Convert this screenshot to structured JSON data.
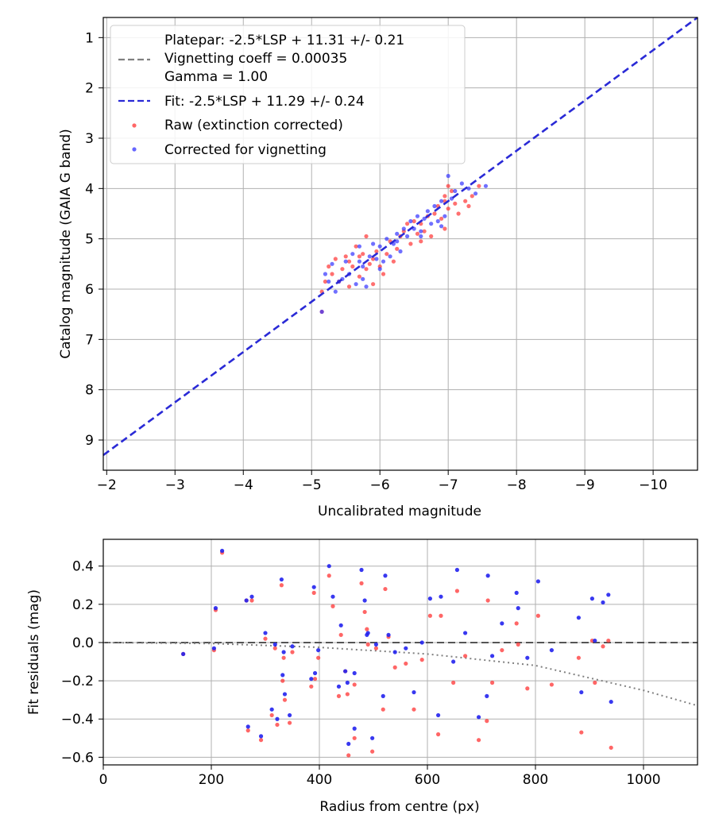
{
  "chart_data": [
    {
      "type": "scatter",
      "name": "magnitude-calibration",
      "xlabel": "Uncalibrated magnitude",
      "ylabel": "Catalog magnitude (GAIA G band)",
      "xlim": [
        -1.95,
        -10.65
      ],
      "ylim": [
        9.6,
        0.6
      ],
      "grid": true,
      "legend_position": "top-left",
      "xticks": [
        -2,
        -3,
        -4,
        -5,
        -6,
        -7,
        -8,
        -9,
        -10
      ],
      "xtick_labels": [
        "−2",
        "−3",
        "−4",
        "−5",
        "−6",
        "−7",
        "−8",
        "−9",
        "−10"
      ],
      "yticks": [
        1,
        2,
        3,
        4,
        5,
        6,
        7,
        8,
        9
      ],
      "ytick_labels": [
        "1",
        "2",
        "3",
        "4",
        "5",
        "6",
        "7",
        "8",
        "9"
      ],
      "legend": [
        {
          "label": "Platepar: -2.5*LSP + 11.31 +/- 0.21",
          "kind": "text"
        },
        {
          "label": "Vignetting coeff = 0.00035",
          "kind": "dashed-line",
          "color": "#808080"
        },
        {
          "label": "Gamma = 1.00",
          "kind": "text"
        },
        {
          "label": "Fit: -2.5*LSP + 11.29 +/- 0.24",
          "kind": "dashed-line",
          "color": "#2a2ad6"
        },
        {
          "label": "Raw (extinction corrected)",
          "kind": "marker",
          "color": "#ff3333"
        },
        {
          "label": "Corrected for vignetting",
          "kind": "marker",
          "color": "#3333ff"
        }
      ],
      "fit_line": {
        "x": [
          -1.95,
          -10.65
        ],
        "y": [
          9.3,
          0.6
        ],
        "color": "#2a2ad6"
      },
      "series": [
        {
          "name": "Raw (extinction corrected)",
          "color": "#ff3333",
          "points": [
            [
              -5.15,
              6.45
            ],
            [
              -5.15,
              6.05
            ],
            [
              -5.2,
              5.85
            ],
            [
              -5.25,
              5.55
            ],
            [
              -5.3,
              5.7
            ],
            [
              -5.35,
              5.4
            ],
            [
              -5.4,
              5.85
            ],
            [
              -5.5,
              5.35
            ],
            [
              -5.55,
              5.45
            ],
            [
              -5.55,
              5.95
            ],
            [
              -5.6,
              5.55
            ],
            [
              -5.65,
              5.15
            ],
            [
              -5.7,
              5.35
            ],
            [
              -5.7,
              5.75
            ],
            [
              -5.75,
              5.3
            ],
            [
              -5.8,
              5.6
            ],
            [
              -5.8,
              4.95
            ],
            [
              -5.85,
              5.5
            ],
            [
              -5.9,
              5.4
            ],
            [
              -5.95,
              5.25
            ],
            [
              -6.0,
              5.55
            ],
            [
              -6.05,
              5.7
            ],
            [
              -6.1,
              5.3
            ],
            [
              -6.15,
              5.05
            ],
            [
              -6.2,
              5.45
            ],
            [
              -6.25,
              5.2
            ],
            [
              -6.3,
              4.95
            ],
            [
              -6.35,
              4.85
            ],
            [
              -6.4,
              4.7
            ],
            [
              -6.45,
              5.1
            ],
            [
              -6.5,
              4.65
            ],
            [
              -6.55,
              4.9
            ],
            [
              -6.6,
              4.7
            ],
            [
              -6.65,
              4.85
            ],
            [
              -6.7,
              4.55
            ],
            [
              -6.75,
              4.95
            ],
            [
              -6.8,
              4.5
            ],
            [
              -6.85,
              4.35
            ],
            [
              -6.9,
              4.6
            ],
            [
              -6.95,
              4.25
            ],
            [
              -6.95,
              4.15
            ],
            [
              -7.0,
              3.95
            ],
            [
              -7.0,
              4.4
            ],
            [
              -7.05,
              4.05
            ],
            [
              -7.1,
              4.3
            ],
            [
              -7.15,
              4.5
            ],
            [
              -7.25,
              4.25
            ],
            [
              -7.3,
              4.35
            ],
            [
              -7.35,
              4.15
            ],
            [
              -7.45,
              3.95
            ],
            [
              -5.9,
              5.9
            ],
            [
              -6.6,
              5.05
            ],
            [
              -6.95,
              4.8
            ],
            [
              -5.45,
              5.6
            ]
          ]
        },
        {
          "name": "Corrected for vignetting",
          "color": "#3333ff",
          "points": [
            [
              -5.15,
              6.45
            ],
            [
              -5.2,
              5.7
            ],
            [
              -5.25,
              5.85
            ],
            [
              -5.3,
              5.5
            ],
            [
              -5.35,
              6.05
            ],
            [
              -5.45,
              5.8
            ],
            [
              -5.5,
              5.45
            ],
            [
              -5.55,
              5.7
            ],
            [
              -5.6,
              5.3
            ],
            [
              -5.65,
              5.9
            ],
            [
              -5.7,
              5.15
            ],
            [
              -5.7,
              5.45
            ],
            [
              -5.75,
              5.55
            ],
            [
              -5.8,
              5.95
            ],
            [
              -5.85,
              5.35
            ],
            [
              -5.9,
              5.1
            ],
            [
              -5.95,
              5.4
            ],
            [
              -6.0,
              5.15
            ],
            [
              -6.05,
              5.45
            ],
            [
              -6.1,
              5.0
            ],
            [
              -6.15,
              5.35
            ],
            [
              -6.2,
              5.1
            ],
            [
              -6.25,
              4.9
            ],
            [
              -6.3,
              5.25
            ],
            [
              -6.35,
              4.8
            ],
            [
              -6.4,
              4.95
            ],
            [
              -6.45,
              4.65
            ],
            [
              -6.5,
              4.8
            ],
            [
              -6.55,
              4.55
            ],
            [
              -6.6,
              4.95
            ],
            [
              -6.65,
              4.6
            ],
            [
              -6.7,
              4.45
            ],
            [
              -6.75,
              4.7
            ],
            [
              -6.8,
              4.35
            ],
            [
              -6.85,
              4.65
            ],
            [
              -6.9,
              4.25
            ],
            [
              -6.95,
              4.55
            ],
            [
              -7.0,
              3.75
            ],
            [
              -7.05,
              4.2
            ],
            [
              -7.1,
              4.05
            ],
            [
              -7.2,
              3.9
            ],
            [
              -7.3,
              4.0
            ],
            [
              -7.4,
              4.1
            ],
            [
              -7.55,
              3.95
            ],
            [
              -5.75,
              5.8
            ],
            [
              -6.25,
              5.05
            ],
            [
              -6.9,
              4.75
            ],
            [
              -5.4,
              5.85
            ],
            [
              -6.0,
              5.6
            ],
            [
              -6.6,
              4.85
            ]
          ]
        }
      ]
    },
    {
      "type": "scatter",
      "name": "fit-residuals",
      "xlabel": "Radius from centre (px)",
      "ylabel": "Fit residuals (mag)",
      "xlim": [
        0,
        1100
      ],
      "ylim": [
        -0.64,
        0.54
      ],
      "grid": true,
      "xticks": [
        0,
        200,
        400,
        600,
        800,
        1000
      ],
      "xtick_labels": [
        "0",
        "200",
        "400",
        "600",
        "800",
        "1000"
      ],
      "yticks": [
        0.4,
        0.2,
        0.0,
        -0.2,
        -0.4,
        -0.6
      ],
      "ytick_labels": [
        "0.4",
        "0.2",
        "0.0",
        "−0.2",
        "−0.4",
        "−0.6"
      ],
      "zero_line": {
        "y": 0,
        "style": "dashed",
        "color": "#555555"
      },
      "vignetting_curve": {
        "x": [
          0,
          200,
          400,
          600,
          800,
          1000,
          1100
        ],
        "y": [
          0.0,
          -0.005,
          -0.025,
          -0.06,
          -0.12,
          -0.25,
          -0.33
        ],
        "color": "#808080",
        "style": "dotted"
      },
      "series": [
        {
          "name": "Raw",
          "color": "#ff3333",
          "points": [
            [
              148,
              -0.06
            ],
            [
              205,
              -0.04
            ],
            [
              208,
              0.17
            ],
            [
              220,
              0.47
            ],
            [
              265,
              0.22
            ],
            [
              268,
              -0.46
            ],
            [
              275,
              0.22
            ],
            [
              292,
              -0.51
            ],
            [
              300,
              0.02
            ],
            [
              312,
              -0.38
            ],
            [
              318,
              -0.03
            ],
            [
              322,
              -0.43
            ],
            [
              330,
              0.3
            ],
            [
              332,
              -0.2
            ],
            [
              334,
              -0.08
            ],
            [
              336,
              -0.3
            ],
            [
              345,
              -0.42
            ],
            [
              350,
              -0.05
            ],
            [
              385,
              -0.23
            ],
            [
              390,
              0.26
            ],
            [
              392,
              -0.19
            ],
            [
              398,
              -0.08
            ],
            [
              418,
              0.35
            ],
            [
              425,
              0.19
            ],
            [
              436,
              -0.28
            ],
            [
              440,
              0.04
            ],
            [
              448,
              -0.15
            ],
            [
              452,
              -0.27
            ],
            [
              454,
              -0.59
            ],
            [
              465,
              -0.5
            ],
            [
              465,
              -0.22
            ],
            [
              478,
              0.31
            ],
            [
              484,
              0.16
            ],
            [
              488,
              0.07
            ],
            [
              490,
              -0.01
            ],
            [
              498,
              -0.57
            ],
            [
              505,
              -0.03
            ],
            [
              518,
              -0.35
            ],
            [
              522,
              0.28
            ],
            [
              528,
              0.03
            ],
            [
              540,
              -0.13
            ],
            [
              560,
              -0.11
            ],
            [
              575,
              -0.35
            ],
            [
              590,
              -0.09
            ],
            [
              605,
              0.14
            ],
            [
              620,
              -0.48
            ],
            [
              625,
              0.14
            ],
            [
              648,
              -0.21
            ],
            [
              655,
              0.27
            ],
            [
              670,
              -0.07
            ],
            [
              695,
              -0.51
            ],
            [
              710,
              -0.41
            ],
            [
              712,
              0.22
            ],
            [
              720,
              -0.21
            ],
            [
              738,
              -0.04
            ],
            [
              765,
              0.1
            ],
            [
              768,
              -0.01
            ],
            [
              785,
              -0.24
            ],
            [
              805,
              0.14
            ],
            [
              830,
              -0.22
            ],
            [
              880,
              -0.08
            ],
            [
              885,
              -0.47
            ],
            [
              905,
              0.01
            ],
            [
              910,
              -0.21
            ],
            [
              925,
              -0.02
            ],
            [
              935,
              0.01
            ],
            [
              940,
              -0.55
            ]
          ]
        },
        {
          "name": "Corrected",
          "color": "#2222ee",
          "points": [
            [
              148,
              -0.06
            ],
            [
              205,
              -0.03
            ],
            [
              208,
              0.18
            ],
            [
              220,
              0.48
            ],
            [
              265,
              0.22
            ],
            [
              268,
              -0.44
            ],
            [
              275,
              0.24
            ],
            [
              292,
              -0.49
            ],
            [
              300,
              0.05
            ],
            [
              312,
              -0.35
            ],
            [
              318,
              -0.01
            ],
            [
              322,
              -0.4
            ],
            [
              330,
              0.33
            ],
            [
              332,
              -0.17
            ],
            [
              334,
              -0.05
            ],
            [
              336,
              -0.27
            ],
            [
              345,
              -0.38
            ],
            [
              350,
              -0.02
            ],
            [
              385,
              -0.19
            ],
            [
              390,
              0.29
            ],
            [
              392,
              -0.16
            ],
            [
              398,
              -0.04
            ],
            [
              418,
              0.4
            ],
            [
              425,
              0.24
            ],
            [
              436,
              -0.23
            ],
            [
              440,
              0.09
            ],
            [
              448,
              -0.15
            ],
            [
              452,
              -0.21
            ],
            [
              454,
              -0.53
            ],
            [
              465,
              -0.45
            ],
            [
              465,
              -0.16
            ],
            [
              478,
              0.38
            ],
            [
              484,
              0.22
            ],
            [
              488,
              0.04
            ],
            [
              490,
              0.05
            ],
            [
              498,
              -0.5
            ],
            [
              505,
              -0.01
            ],
            [
              518,
              -0.28
            ],
            [
              522,
              0.35
            ],
            [
              528,
              0.04
            ],
            [
              540,
              -0.05
            ],
            [
              560,
              -0.03
            ],
            [
              575,
              -0.26
            ],
            [
              590,
              0.0
            ],
            [
              605,
              0.23
            ],
            [
              620,
              -0.38
            ],
            [
              625,
              0.24
            ],
            [
              648,
              -0.1
            ],
            [
              655,
              0.38
            ],
            [
              670,
              0.05
            ],
            [
              695,
              -0.39
            ],
            [
              710,
              -0.28
            ],
            [
              712,
              0.35
            ],
            [
              720,
              -0.07
            ],
            [
              738,
              0.1
            ],
            [
              765,
              0.26
            ],
            [
              768,
              0.18
            ],
            [
              785,
              -0.08
            ],
            [
              805,
              0.32
            ],
            [
              830,
              -0.04
            ],
            [
              880,
              0.13
            ],
            [
              885,
              -0.26
            ],
            [
              905,
              0.23
            ],
            [
              910,
              0.01
            ],
            [
              925,
              0.21
            ],
            [
              935,
              0.25
            ],
            [
              940,
              -0.31
            ]
          ]
        }
      ]
    }
  ]
}
